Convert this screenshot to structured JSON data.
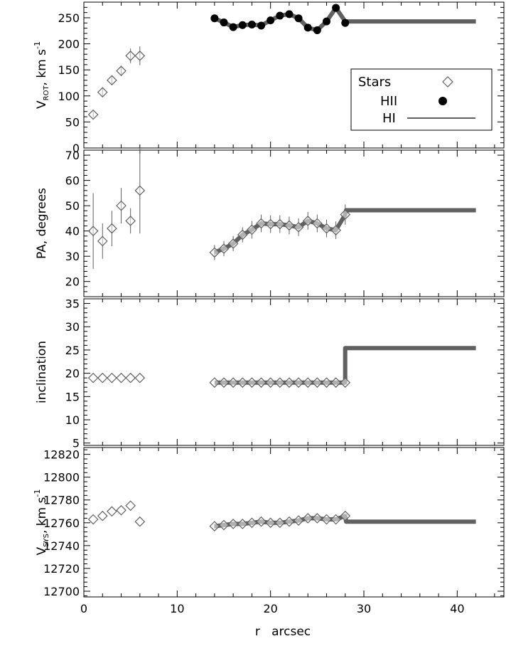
{
  "figure": {
    "xlabel": "r   arcsec",
    "legend": {
      "stars_label": "Stars",
      "hii_label": "HII",
      "hi_label": "HI",
      "placement": "top-right of the top panel"
    }
  },
  "colors": {
    "hi_line": "#606060",
    "stars_marker": "#606060",
    "hii_marker": "#000000",
    "axis": "#000000",
    "background": "#ffffff"
  },
  "chart_data": [
    {
      "type": "scatter",
      "panel": "vrot",
      "ylabel_main": "V",
      "ylabel_sub": "ROT",
      "ylabel_rest": ",   km  s",
      "ylabel_sup": "-1",
      "xlim": [
        0,
        45
      ],
      "ylim": [
        0,
        280
      ],
      "xticks": [
        0,
        10,
        20,
        30,
        40
      ],
      "yticks": [
        0,
        50,
        100,
        150,
        200,
        250
      ],
      "ytick_labels": [
        "0",
        "50",
        "100",
        "150",
        "200",
        "250"
      ],
      "series": [
        {
          "name": "Stars",
          "marker": "diamond",
          "x": [
            1,
            2,
            3,
            4,
            5,
            6
          ],
          "y": [
            64,
            107,
            130,
            148,
            177,
            177
          ],
          "err": [
            6,
            8,
            9,
            10,
            14,
            18
          ]
        },
        {
          "name": "HII",
          "marker": "dot",
          "x": [
            14,
            15,
            16,
            17,
            18,
            19,
            20,
            21,
            22,
            23,
            24,
            25,
            26,
            27,
            28
          ],
          "y": [
            249,
            241,
            232,
            236,
            237,
            235,
            245,
            254,
            257,
            249,
            231,
            226,
            243,
            269,
            240
          ]
        },
        {
          "name": "HI",
          "marker": "line",
          "x": [
            14,
            15,
            16,
            17,
            18,
            19,
            20,
            21,
            22,
            23,
            24,
            25,
            26,
            27,
            28,
            28.1,
            42
          ],
          "y": [
            249,
            241,
            232,
            236,
            237,
            235,
            245,
            254,
            257,
            249,
            231,
            226,
            243,
            269,
            243,
            243,
            243
          ]
        }
      ]
    },
    {
      "type": "scatter",
      "panel": "pa",
      "ylabel": "PA,    degrees",
      "xlim": [
        0,
        45
      ],
      "ylim": [
        14,
        72
      ],
      "xticks": [
        0,
        10,
        20,
        30,
        40
      ],
      "yticks": [
        20,
        30,
        40,
        50,
        60,
        70
      ],
      "ytick_labels": [
        "20",
        "30",
        "40",
        "50",
        "60",
        "70"
      ],
      "series": [
        {
          "name": "Stars",
          "marker": "diamond",
          "x": [
            1,
            2,
            3,
            4,
            5,
            6
          ],
          "y": [
            40,
            36,
            41,
            50,
            44,
            56
          ],
          "err": [
            15,
            7,
            7,
            7,
            5,
            17
          ]
        },
        {
          "name": "HII",
          "marker": "diamond",
          "x": [
            14,
            15,
            16,
            17,
            18,
            19,
            20,
            21,
            22,
            23,
            24,
            25,
            26,
            27,
            28
          ],
          "y": [
            31.5,
            33,
            35,
            38.5,
            40.5,
            43,
            42.7,
            42.7,
            42.2,
            41.5,
            44,
            43,
            41,
            40.3,
            46.5
          ],
          "err": [
            3,
            3,
            3,
            3,
            3.5,
            3.5,
            3.5,
            3.5,
            3.5,
            3.5,
            3.5,
            3.5,
            3.5,
            3.5,
            4
          ]
        },
        {
          "name": "HI",
          "marker": "line",
          "x": [
            14,
            15,
            16,
            17,
            18,
            19,
            20,
            21,
            22,
            23,
            24,
            25,
            26,
            27,
            28,
            28.1,
            42
          ],
          "y": [
            31.5,
            33,
            35,
            38.5,
            40.5,
            43,
            42.7,
            42.7,
            42.2,
            41.5,
            44,
            43,
            41,
            40.3,
            46.5,
            48.2,
            48.2
          ]
        }
      ]
    },
    {
      "type": "scatter",
      "panel": "incl",
      "ylabel": "inclination",
      "xlim": [
        0,
        45
      ],
      "ylim": [
        4.5,
        36
      ],
      "xticks": [
        0,
        10,
        20,
        30,
        40
      ],
      "yticks": [
        5,
        10,
        15,
        20,
        25,
        30,
        35
      ],
      "ytick_labels": [
        "5",
        "10",
        "15",
        "20",
        "25",
        "30",
        "35"
      ],
      "series": [
        {
          "name": "Stars",
          "marker": "diamond",
          "x": [
            1,
            2,
            3,
            4,
            5,
            6
          ],
          "y": [
            19,
            19,
            19,
            19,
            19,
            19
          ]
        },
        {
          "name": "HII",
          "marker": "diamond",
          "x": [
            14,
            15,
            16,
            17,
            18,
            19,
            20,
            21,
            22,
            23,
            24,
            25,
            26,
            27,
            28
          ],
          "y": [
            18,
            18,
            18,
            18,
            18,
            18,
            18,
            18,
            18,
            18,
            18,
            18,
            18,
            18,
            18
          ]
        },
        {
          "name": "HI",
          "marker": "line",
          "x": [
            14,
            28,
            28,
            42
          ],
          "y": [
            18,
            18,
            25.4,
            25.4
          ]
        }
      ]
    },
    {
      "type": "scatter",
      "panel": "vsys",
      "ylabel_main": "V",
      "ylabel_sub": "SYS",
      "ylabel_rest": ",  km  s",
      "ylabel_sup": "-1",
      "xlim": [
        0,
        45
      ],
      "ylim": [
        12695,
        12826
      ],
      "xticks": [
        0,
        10,
        20,
        30,
        40
      ],
      "xtick_labels": [
        "0",
        "10",
        "20",
        "30",
        "40"
      ],
      "yticks": [
        12700,
        12720,
        12740,
        12760,
        12780,
        12800,
        12820
      ],
      "ytick_labels": [
        "12700",
        "12720",
        "12740",
        "12760",
        "12780",
        "12800",
        "12820"
      ],
      "series": [
        {
          "name": "Stars",
          "marker": "diamond",
          "x": [
            1,
            2,
            3,
            4,
            5,
            6
          ],
          "y": [
            12763,
            12766,
            12770,
            12771,
            12775,
            12761
          ]
        },
        {
          "name": "HII",
          "marker": "diamond",
          "x": [
            14,
            15,
            16,
            17,
            18,
            19,
            20,
            21,
            22,
            23,
            24,
            25,
            26,
            27,
            28
          ],
          "y": [
            12757,
            12758,
            12759,
            12759,
            12760,
            12761,
            12760,
            12760,
            12761,
            12762,
            12764,
            12764,
            12763,
            12763,
            12766
          ],
          "err": [
            2,
            2,
            2,
            2,
            2,
            2,
            2,
            2,
            2,
            2,
            2,
            2,
            2,
            2,
            2
          ]
        },
        {
          "name": "HI",
          "marker": "line",
          "x": [
            14,
            15,
            16,
            17,
            18,
            19,
            20,
            21,
            22,
            23,
            24,
            25,
            26,
            27,
            28,
            28.1,
            42
          ],
          "y": [
            12757,
            12758,
            12759,
            12759,
            12760,
            12761,
            12760,
            12760,
            12761,
            12762,
            12764,
            12764,
            12763,
            12763,
            12766,
            12761,
            12761
          ]
        }
      ]
    }
  ]
}
